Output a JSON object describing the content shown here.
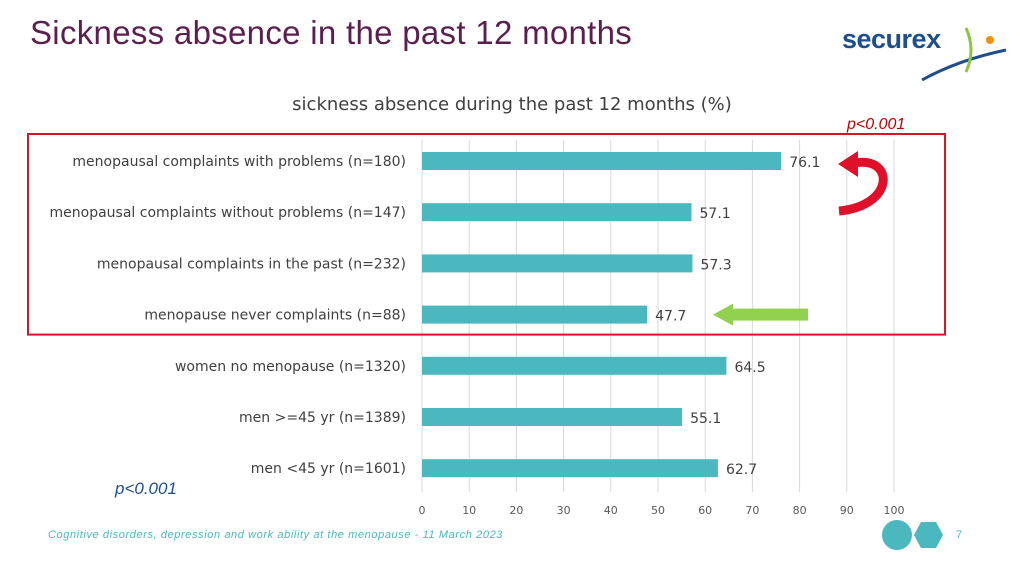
{
  "slide": {
    "title": "Sickness absence in the past 12 months",
    "footer": "Cognitive disorders, depression and work ability at the menopause - 11 March 2023",
    "page_number": "7",
    "p_value_top": "p<0.001",
    "p_value_bottom": "p<0.001"
  },
  "logo": {
    "text": "securex"
  },
  "colors": {
    "title": "#5a1f4e",
    "bar": "#4bb8c0",
    "highlight_box": "#e0102a",
    "red_arrow": "#e0102a",
    "green_arrow": "#92d050",
    "logo_blue": "#1f4e8c",
    "logo_orange": "#f29100",
    "logo_green": "#8cc63f"
  },
  "chart_data": {
    "type": "bar",
    "orientation": "horizontal",
    "title": "sickness absence during the past 12 months (%)",
    "categories": [
      "menopausal complaints with problems (n=180)",
      "menopausal complaints without problems (n=147)",
      "menopausal complaints in the past (n=232)",
      "menopause never complaints (n=88)",
      "women no menopause (n=1320)",
      "men >=45 yr (n=1389)",
      "men <45 yr (n=1601)"
    ],
    "values": [
      76.1,
      57.1,
      57.3,
      47.7,
      64.5,
      55.1,
      62.7
    ],
    "data_labels": [
      "76.1",
      "57.1",
      "57.3",
      "47.7",
      "64.5",
      "55.1",
      "62.7"
    ],
    "xlim": [
      0,
      100
    ],
    "x_ticks": [
      0,
      10,
      20,
      30,
      40,
      50,
      60,
      70,
      80,
      90,
      100
    ],
    "grid": true,
    "legend": "none",
    "highlighted_categories": [
      0,
      1,
      2,
      3
    ],
    "annotations": [
      {
        "type": "curved-arrow",
        "color": "red",
        "points_to_category": 0
      },
      {
        "type": "arrow",
        "color": "green",
        "points_to_category": 3
      }
    ]
  }
}
